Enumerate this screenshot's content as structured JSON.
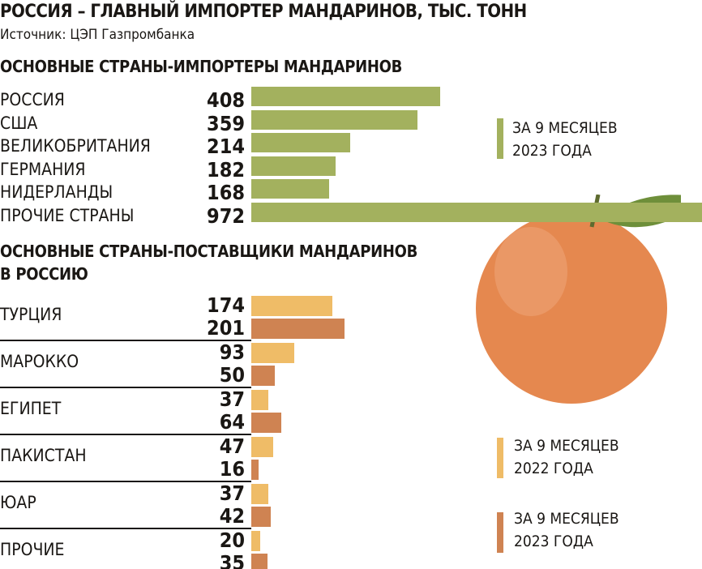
{
  "title": "РОССИЯ – ГЛАВНЫЙ ИМПОРТЕР МАНДАРИНОВ, ТЫС. ТОНН",
  "source": "Источник: ЦЭП Газпромбанка",
  "chart_data": [
    {
      "type": "bar",
      "title": "ОСНОВНЫЕ СТРАНЫ-ИМПОРТЕРЫ МАНДАРИНОВ",
      "categories": [
        "РОССИЯ",
        "США",
        "ВЕЛИКОБРИТАНИЯ",
        "ГЕРМАНИЯ",
        "НИДЕРЛАНДЫ",
        "ПРОЧИЕ СТРАНЫ"
      ],
      "series": [
        {
          "name": "ЗА 9 МЕСЯЦЕВ 2023 ГОДА",
          "values": [
            408,
            359,
            214,
            182,
            168,
            972
          ],
          "color": "#a3b15e"
        }
      ],
      "legend_position": "right"
    },
    {
      "type": "bar",
      "title": "ОСНОВНЫЕ СТРАНЫ-ПОСТАВЩИКИ МАНДАРИНОВ В РОССИЮ",
      "categories": [
        "ТУРЦИЯ",
        "МАРОККО",
        "ЕГИПЕТ",
        "ПАКИСТАН",
        "ЮАР",
        "ПРОЧИЕ"
      ],
      "series": [
        {
          "name": "ЗА 9 МЕСЯЦЕВ 2022 ГОДА",
          "values": [
            174,
            93,
            37,
            47,
            37,
            20
          ],
          "color": "#efbc67"
        },
        {
          "name": "ЗА 9 МЕСЯЦЕВ 2023 ГОДА",
          "values": [
            201,
            50,
            64,
            16,
            42,
            35
          ],
          "color": "#cf8352"
        }
      ],
      "legend_position": "bottom-right"
    }
  ],
  "legend": {
    "green": [
      "ЗА 9 МЕСЯЦЕВ",
      "2023 ГОДА"
    ],
    "light": [
      "ЗА 9 МЕСЯЦЕВ",
      "2022 ГОДА"
    ],
    "dark": [
      "ЗА 9 МЕСЯЦЕВ",
      "2023 ГОДА"
    ]
  },
  "subtitle2_lines": [
    "ОСНОВНЫЕ СТРАНЫ-ПОСТАВЩИКИ МАНДАРИНОВ",
    "В РОССИЮ"
  ]
}
